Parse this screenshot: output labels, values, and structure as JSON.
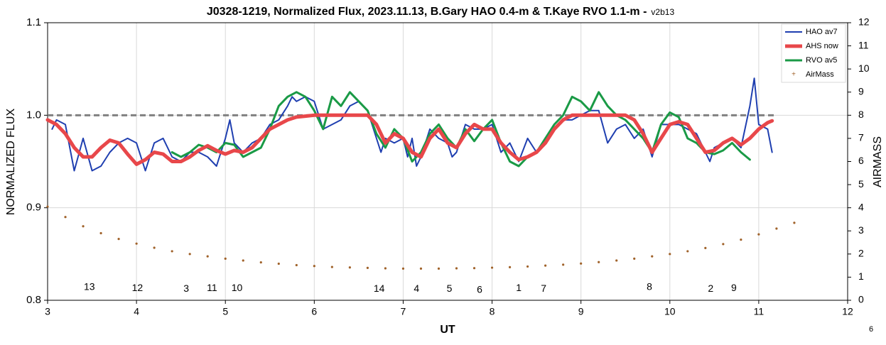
{
  "chart_data": {
    "type": "line",
    "title": "J0328-1219, Normalized Flux, 2023.11.13, B.Gary HAO 0.4-m & T.Kaye RVO 1.1-m -",
    "version": "v2b13",
    "x_label": "UT",
    "y_label": "NORMALIZED FLUX",
    "y2_label": "AIRMASS",
    "footnote": "6",
    "xlim": [
      3,
      12
    ],
    "xticks": [
      3,
      4,
      5,
      6,
      7,
      8,
      9,
      10,
      11,
      12
    ],
    "ylim": [
      0.8,
      1.1
    ],
    "yticks": [
      0.8,
      0.9,
      {
        "value": 1,
        "label": "1.0"
      },
      1.1
    ],
    "y2lim": [
      0,
      12
    ],
    "y2ticks": [
      0,
      1,
      2,
      3,
      4,
      5,
      6,
      7,
      8,
      9,
      10,
      11,
      12
    ],
    "grid": true,
    "hline": 1,
    "legend": "top-right",
    "series": [
      {
        "name": "HAO av7",
        "color": "#1f3fb0",
        "width": 2,
        "x": [
          3.05,
          3.1,
          3.2,
          3.3,
          3.4,
          3.5,
          3.6,
          3.7,
          3.8,
          3.9,
          4.0,
          4.1,
          4.2,
          4.3,
          4.4,
          4.5,
          4.6,
          4.7,
          4.8,
          4.9,
          5.0,
          5.05,
          5.1,
          5.2,
          5.3,
          5.4,
          5.5,
          5.6,
          5.7,
          5.75,
          5.8,
          5.9,
          6.0,
          6.1,
          6.2,
          6.3,
          6.4,
          6.5,
          6.6,
          6.7,
          6.75,
          6.8,
          6.9,
          7.0,
          7.05,
          7.1,
          7.15,
          7.2,
          7.3,
          7.4,
          7.5,
          7.55,
          7.6,
          7.7,
          7.8,
          7.9,
          8.0,
          8.1,
          8.2,
          8.3,
          8.4,
          8.5,
          8.6,
          8.7,
          8.8,
          8.9,
          9.0,
          9.1,
          9.2,
          9.3,
          9.4,
          9.5,
          9.6,
          9.7,
          9.8,
          9.9,
          10.0,
          10.1,
          10.2,
          10.3,
          10.4,
          10.45,
          10.5,
          10.6,
          10.7,
          10.8,
          10.9,
          10.95,
          11.0,
          11.1,
          11.15
        ],
        "values": [
          0.985,
          0.995,
          0.99,
          0.94,
          0.975,
          0.94,
          0.945,
          0.96,
          0.97,
          0.975,
          0.97,
          0.94,
          0.97,
          0.975,
          0.955,
          0.95,
          0.96,
          0.96,
          0.955,
          0.945,
          0.975,
          0.995,
          0.97,
          0.96,
          0.97,
          0.975,
          0.99,
          0.995,
          1.01,
          1.02,
          1.015,
          1.02,
          1.015,
          0.985,
          0.99,
          0.995,
          1.01,
          1.015,
          1.005,
          0.975,
          0.96,
          0.975,
          0.97,
          0.975,
          0.955,
          0.975,
          0.945,
          0.955,
          0.985,
          0.975,
          0.97,
          0.955,
          0.96,
          0.99,
          0.985,
          0.985,
          0.99,
          0.96,
          0.97,
          0.95,
          0.975,
          0.96,
          0.975,
          0.985,
          0.995,
          0.995,
          1.0,
          1.005,
          1.005,
          0.97,
          0.985,
          0.99,
          0.975,
          0.985,
          0.955,
          0.99,
          0.99,
          0.99,
          0.985,
          0.98,
          0.96,
          0.95,
          0.965,
          0.97,
          0.975,
          0.965,
          1.01,
          1.04,
          0.99,
          0.985,
          0.96
        ]
      },
      {
        "name": "AHS now",
        "color": "#e8474a",
        "width": 5,
        "x": [
          3.0,
          3.1,
          3.2,
          3.3,
          3.4,
          3.5,
          3.6,
          3.7,
          3.8,
          3.9,
          4.0,
          4.1,
          4.2,
          4.3,
          4.4,
          4.5,
          4.6,
          4.7,
          4.8,
          4.9,
          5.0,
          5.1,
          5.2,
          5.3,
          5.4,
          5.5,
          5.6,
          5.7,
          5.8,
          5.9,
          6.0,
          6.3,
          6.6,
          6.7,
          6.8,
          6.9,
          7.0,
          7.1,
          7.2,
          7.3,
          7.4,
          7.5,
          7.6,
          7.7,
          7.8,
          7.9,
          8.0,
          8.1,
          8.2,
          8.3,
          8.4,
          8.5,
          8.6,
          8.7,
          8.8,
          8.9,
          9.0,
          9.5,
          9.6,
          9.7,
          9.8,
          9.9,
          10.0,
          10.1,
          10.2,
          10.3,
          10.4,
          10.5,
          10.6,
          10.7,
          10.8,
          10.9,
          11.0,
          11.1,
          11.15
        ],
        "values": [
          0.995,
          0.99,
          0.98,
          0.965,
          0.955,
          0.955,
          0.965,
          0.973,
          0.97,
          0.958,
          0.947,
          0.952,
          0.96,
          0.958,
          0.95,
          0.95,
          0.955,
          0.962,
          0.967,
          0.962,
          0.958,
          0.962,
          0.96,
          0.965,
          0.975,
          0.985,
          0.99,
          0.995,
          0.998,
          0.999,
          1.0,
          1.0,
          1.0,
          0.99,
          0.97,
          0.98,
          0.975,
          0.96,
          0.955,
          0.975,
          0.985,
          0.97,
          0.965,
          0.98,
          0.99,
          0.985,
          0.985,
          0.97,
          0.96,
          0.952,
          0.955,
          0.96,
          0.97,
          0.985,
          0.995,
          1.0,
          1.0,
          1.0,
          0.995,
          0.98,
          0.96,
          0.975,
          0.99,
          0.993,
          0.99,
          0.975,
          0.96,
          0.962,
          0.97,
          0.975,
          0.968,
          0.975,
          0.985,
          0.992,
          0.994
        ]
      },
      {
        "name": "RVO av5",
        "color": "#1a9a46",
        "width": 3,
        "x": [
          4.4,
          4.5,
          4.6,
          4.7,
          4.8,
          4.9,
          5.0,
          5.1,
          5.2,
          5.3,
          5.4,
          5.5,
          5.6,
          5.7,
          5.8,
          5.9,
          6.0,
          6.1,
          6.2,
          6.3,
          6.4,
          6.5,
          6.6,
          6.7,
          6.8,
          6.9,
          7.0,
          7.1,
          7.2,
          7.3,
          7.4,
          7.5,
          7.6,
          7.7,
          7.8,
          7.9,
          8.0,
          8.1,
          8.2,
          8.3,
          8.4,
          8.5,
          8.6,
          8.7,
          8.8,
          8.9,
          9.0,
          9.1,
          9.2,
          9.3,
          9.4,
          9.5,
          9.6,
          9.7,
          9.8,
          9.9,
          10.0,
          10.1,
          10.2,
          10.3,
          10.4,
          10.5,
          10.6,
          10.7,
          10.8,
          10.9
        ],
        "values": [
          0.96,
          0.955,
          0.96,
          0.968,
          0.965,
          0.96,
          0.97,
          0.968,
          0.955,
          0.96,
          0.965,
          0.985,
          1.01,
          1.02,
          1.025,
          1.02,
          1.005,
          0.985,
          1.02,
          1.01,
          1.025,
          1.015,
          1.005,
          0.98,
          0.965,
          0.985,
          0.975,
          0.95,
          0.96,
          0.98,
          0.99,
          0.975,
          0.965,
          0.985,
          0.972,
          0.985,
          0.995,
          0.97,
          0.95,
          0.945,
          0.955,
          0.96,
          0.975,
          0.99,
          1.0,
          1.02,
          1.015,
          1.005,
          1.025,
          1.01,
          1.0,
          0.995,
          0.985,
          0.975,
          0.96,
          0.99,
          1.003,
          0.998,
          0.975,
          0.97,
          0.96,
          0.958,
          0.962,
          0.97,
          0.96,
          0.952
        ]
      },
      {
        "name": "AirMass",
        "color": "#a0622a",
        "style": "dots",
        "axis": "y2",
        "x": [
          3.0,
          3.2,
          3.4,
          3.6,
          3.8,
          4.0,
          4.2,
          4.4,
          4.6,
          4.8,
          5.0,
          5.2,
          5.4,
          5.6,
          5.8,
          6.0,
          6.2,
          6.4,
          6.6,
          6.8,
          7.0,
          7.2,
          7.4,
          7.6,
          7.8,
          8.0,
          8.2,
          8.4,
          8.6,
          8.8,
          9.0,
          9.2,
          9.4,
          9.6,
          9.8,
          10.0,
          10.2,
          10.4,
          10.6,
          10.8,
          11.0,
          11.2,
          11.4
        ],
        "values": [
          4.05,
          3.6,
          3.2,
          2.9,
          2.65,
          2.45,
          2.27,
          2.12,
          2.0,
          1.9,
          1.8,
          1.72,
          1.64,
          1.58,
          1.52,
          1.48,
          1.44,
          1.42,
          1.4,
          1.38,
          1.37,
          1.37,
          1.37,
          1.38,
          1.39,
          1.41,
          1.43,
          1.46,
          1.5,
          1.54,
          1.59,
          1.65,
          1.72,
          1.8,
          1.9,
          2.0,
          2.12,
          2.26,
          2.43,
          2.62,
          2.85,
          3.1,
          3.35
        ]
      }
    ],
    "annotations": [
      {
        "text": "13",
        "x": 3.47,
        "y": 0.814
      },
      {
        "text": "12",
        "x": 4.01,
        "y": 0.813
      },
      {
        "text": "3",
        "x": 4.56,
        "y": 0.812
      },
      {
        "text": "11",
        "x": 4.85,
        "y": 0.813
      },
      {
        "text": "10",
        "x": 5.13,
        "y": 0.813
      },
      {
        "text": "14",
        "x": 6.73,
        "y": 0.812
      },
      {
        "text": "4",
        "x": 7.15,
        "y": 0.812
      },
      {
        "text": "5",
        "x": 7.52,
        "y": 0.812
      },
      {
        "text": "6",
        "x": 7.86,
        "y": 0.811
      },
      {
        "text": "1",
        "x": 8.3,
        "y": 0.813
      },
      {
        "text": "7",
        "x": 8.58,
        "y": 0.812
      },
      {
        "text": "8",
        "x": 9.77,
        "y": 0.814
      },
      {
        "text": "2",
        "x": 10.46,
        "y": 0.812
      },
      {
        "text": "9",
        "x": 10.72,
        "y": 0.813
      }
    ]
  }
}
